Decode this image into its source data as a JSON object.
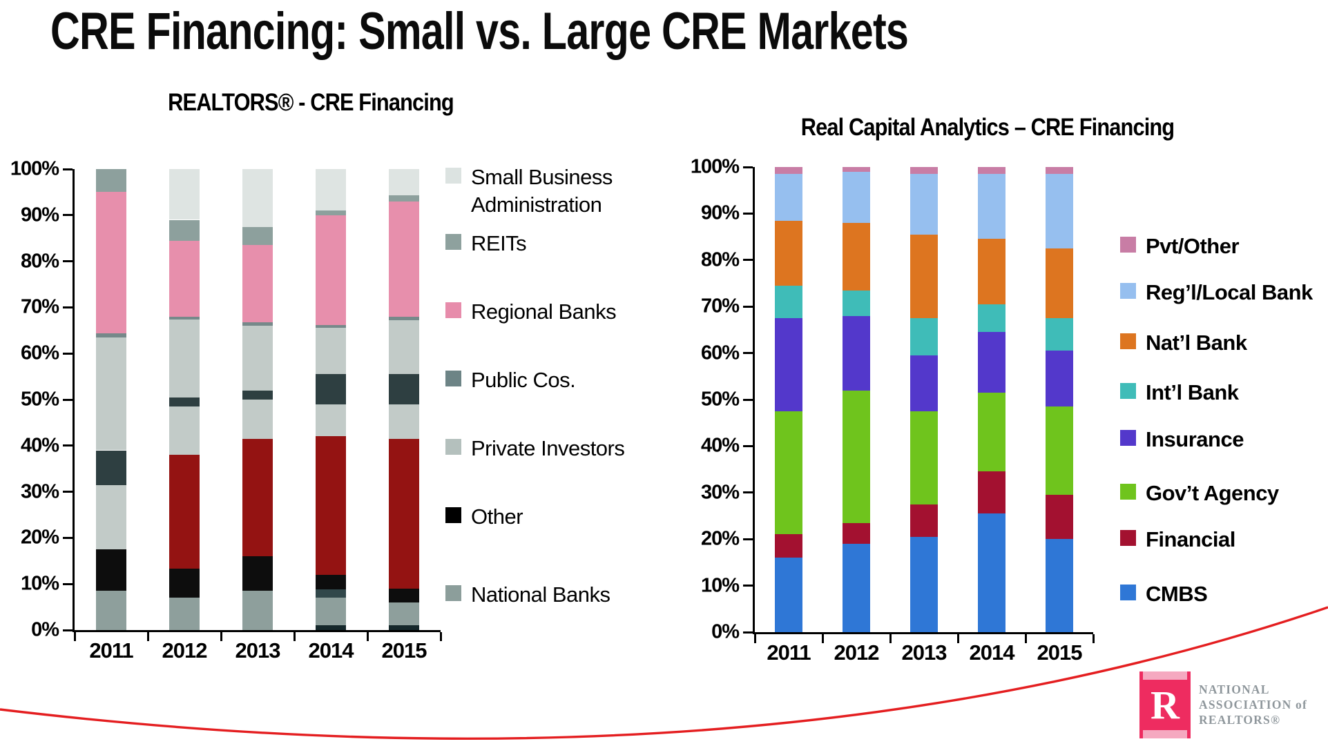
{
  "slide_title": "CRE Financing: Small vs. Large CRE Markets",
  "chart_data": [
    {
      "type": "bar",
      "stacked": true,
      "title": "REALTORS® - CRE Financing",
      "categories": [
        "2011",
        "2012",
        "2013",
        "2014",
        "2015"
      ],
      "y_axis": {
        "min": 0,
        "max": 100,
        "unit": "%",
        "ticks": [
          "100%",
          "90%",
          "80%",
          "70%",
          "60%",
          "50%",
          "40%",
          "30%",
          "20%",
          "10%",
          "0%"
        ]
      },
      "grid": false,
      "legend_position": "right",
      "series": [
        {
          "name": "(unlabeled) dark sliver bottom",
          "color": "#15282b",
          "in_legend": false,
          "values": [
            0,
            0,
            0,
            1,
            1
          ]
        },
        {
          "name": "National Banks",
          "color": "#8e9f9c",
          "in_legend": true,
          "values": [
            8.5,
            7,
            8.5,
            6,
            5
          ]
        },
        {
          "name": "(unlabeled) slate band",
          "color": "#31474a",
          "in_legend": false,
          "values": [
            0,
            0,
            0,
            1.8,
            0
          ]
        },
        {
          "name": "Other",
          "color": "#0d0d0d",
          "in_legend": true,
          "values": [
            9,
            6.3,
            7.5,
            3.2,
            3
          ]
        },
        {
          "name": "(unlabeled) dark red",
          "color": "#941312",
          "in_legend": false,
          "values": [
            0,
            24.7,
            25.5,
            30,
            32.5
          ]
        },
        {
          "name": "Private Investors (lower band)",
          "color": "#c2cbc8",
          "in_legend": false,
          "values": [
            14,
            10.5,
            8.5,
            7,
            7.5
          ]
        },
        {
          "name": "Public Cos.",
          "color": "#2e3f41",
          "in_legend": true,
          "values": [
            7.5,
            2,
            2,
            6.5,
            6.5
          ]
        },
        {
          "name": "Private Investors",
          "color": "#c2cbc8",
          "in_legend": true,
          "values": [
            24.5,
            16.8,
            14,
            10,
            11.7
          ]
        },
        {
          "name": "(unlabeled) gray sliver",
          "color": "#76898a",
          "in_legend": false,
          "values": [
            0.8,
            0.7,
            0.8,
            0.7,
            0.8
          ]
        },
        {
          "name": "Regional Banks",
          "color": "#e78fac",
          "in_legend": true,
          "values": [
            30.7,
            16.5,
            16.7,
            23.8,
            25
          ]
        },
        {
          "name": "REITs",
          "color": "#8da09d",
          "in_legend": true,
          "values": [
            5,
            4.5,
            4,
            1,
            1.3
          ]
        },
        {
          "name": "Small Business Administration",
          "color": "#dee4e2",
          "in_legend": true,
          "values": [
            0,
            11,
            12.5,
            9,
            5.7
          ]
        }
      ],
      "legend": [
        {
          "label": "Small Business\nAdministration",
          "color": "#dce3e1"
        },
        {
          "label": "REITs",
          "color": "#8ea19e"
        },
        {
          "label": "Regional Banks",
          "color": "#e78cab"
        },
        {
          "label": "Public Cos.",
          "color": "#6d8486"
        },
        {
          "label": "Private Investors",
          "color": "#b4c0bd"
        },
        {
          "label": "Other",
          "color": "#000000"
        },
        {
          "label": "National Banks",
          "color": "#8c9e9b"
        }
      ]
    },
    {
      "type": "bar",
      "stacked": true,
      "title": "Real Capital Analytics – CRE Financing",
      "categories": [
        "2011",
        "2012",
        "2013",
        "2014",
        "2015"
      ],
      "y_axis": {
        "min": 0,
        "max": 100,
        "unit": "%",
        "ticks": [
          "100%",
          "90%",
          "80%",
          "70%",
          "60%",
          "50%",
          "40%",
          "30%",
          "20%",
          "10%",
          "0%"
        ]
      },
      "grid": false,
      "legend_position": "right",
      "series": [
        {
          "name": "CMBS",
          "color": "#2f77d6",
          "in_legend": true,
          "values": [
            16,
            19,
            20.5,
            25.5,
            20
          ]
        },
        {
          "name": "Financial",
          "color": "#a31130",
          "in_legend": true,
          "values": [
            5,
            4.5,
            7,
            9,
            9.5
          ]
        },
        {
          "name": "Gov’t Agency",
          "color": "#6fc41d",
          "in_legend": true,
          "values": [
            26.5,
            28.5,
            20,
            17,
            19
          ]
        },
        {
          "name": "Insurance",
          "color": "#5338cb",
          "in_legend": true,
          "values": [
            20,
            16,
            12,
            13,
            12
          ]
        },
        {
          "name": "Int’l Bank",
          "color": "#3fbcb8",
          "in_legend": true,
          "values": [
            7,
            5.5,
            8,
            6,
            7
          ]
        },
        {
          "name": "Nat’l Bank",
          "color": "#dd7520",
          "in_legend": true,
          "values": [
            14,
            14.5,
            18,
            14,
            15
          ]
        },
        {
          "name": "Reg’l/Local Bank",
          "color": "#96bfef",
          "in_legend": true,
          "values": [
            10,
            11,
            13,
            14,
            16
          ]
        },
        {
          "name": "Pvt/Other",
          "color": "#c87da5",
          "in_legend": true,
          "values": [
            1.5,
            1,
            1.5,
            1.5,
            1.5
          ]
        }
      ],
      "legend": [
        {
          "label": "Pvt/Other",
          "color": "#c87da5"
        },
        {
          "label": "Reg’l/Local Bank",
          "color": "#96bfef"
        },
        {
          "label": "Nat’l Bank",
          "color": "#dd7520"
        },
        {
          "label": "Int’l Bank",
          "color": "#3fbcb8"
        },
        {
          "label": "Insurance",
          "color": "#5338cb"
        },
        {
          "label": "Gov’t Agency",
          "color": "#6fc41d"
        },
        {
          "label": "Financial",
          "color": "#a31130"
        },
        {
          "label": "CMBS",
          "color": "#2f77d6"
        }
      ]
    }
  ],
  "logo": {
    "emblem_letter": "R",
    "emblem_color": "#ee2c60",
    "stripe_color": "#f5a9c0",
    "text_color": "#8f979c",
    "line1": "NATIONAL",
    "line2": "ASSOCIATION of",
    "line3": "REALTORS®"
  },
  "decor": {
    "curve_color": "#e41e20"
  }
}
